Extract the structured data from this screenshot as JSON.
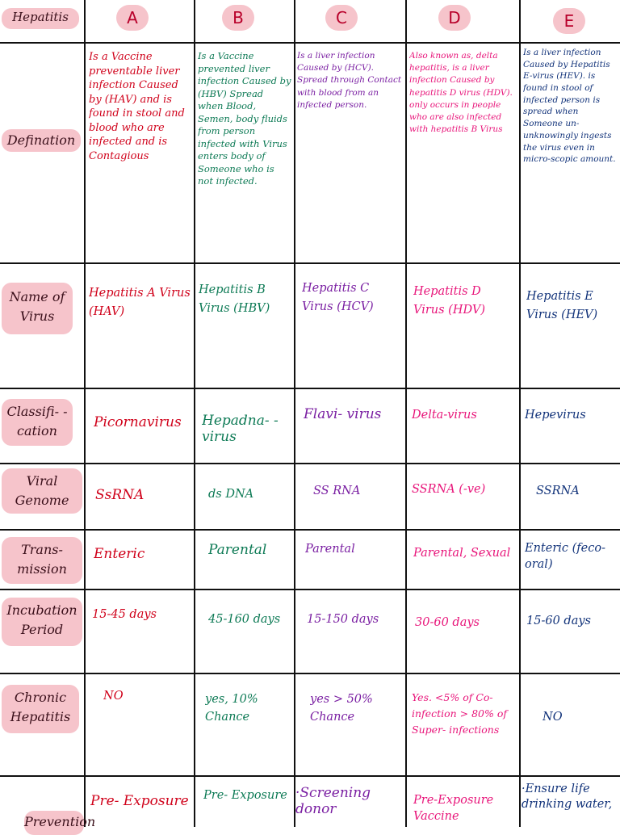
{
  "header": {
    "corner": "Hepatitis",
    "cols": [
      "A",
      "B",
      "C",
      "D",
      "E"
    ]
  },
  "rows": {
    "definition": {
      "label": "Defination",
      "cells": [
        "Is a Vaccine preventable liver infection Caused by (HAV) and is found in stool and blood who are infected and is Contagious",
        "Is a Vaccine prevented liver infection Caused by (HBV) Spread when Blood, Semen, body fluids from person infected with Virus enters body of Someone who is not infected.",
        "Is a liver infection Caused by (HCV). Spread through Contact with blood from an infected person.",
        "Also known as, delta hepatitis, is a liver infection Caused by hepatitis D virus (HDV). only occurs in people who are also infected with hepatitis B Virus",
        "Is a liver infection Caused by Hepatitis E-virus (HEV). is found in stool of infected person is spread when Someone un-unknowingly ingests the virus even in micro-scopic amount."
      ]
    },
    "virus_name": {
      "label": "Name of Virus",
      "cells": [
        "Hepatitis A Virus (HAV)",
        "Hepatitis B Virus (HBV)",
        "Hepatitis C Virus (HCV)",
        "Hepatitis D Virus (HDV)",
        "Hepatitis E Virus (HEV)"
      ]
    },
    "classification": {
      "label": "Classifi- -cation",
      "cells": [
        "Picornavirus",
        "Hepadna- -virus",
        "Flavi- virus",
        "Delta-virus",
        "Hepevirus"
      ]
    },
    "genome": {
      "label": "Viral Genome",
      "cells": [
        "SsRNA",
        "ds DNA",
        "SS RNA",
        "SSRNA (-ve)",
        "SSRNA"
      ]
    },
    "transmission": {
      "label": "Trans- mission",
      "cells": [
        "Enteric",
        "Parental",
        "Parental",
        "Parental, Sexual",
        "Enteric (feco-oral)"
      ]
    },
    "incubation": {
      "label": "Incubation Period",
      "cells": [
        "15-45 days",
        "45-160 days",
        "15-150 days",
        "30-60 days",
        "15-60 days"
      ]
    },
    "chronic": {
      "label": "Chronic Hepatitis",
      "cells": [
        "NO",
        "yes, 10% Chance",
        "yes > 50% Chance",
        "Yes. <5% of Co-infection > 80% of Super- infections",
        "NO"
      ]
    },
    "prevention": {
      "label": "Prevention",
      "cells": [
        "Pre- Exposure",
        "Pre- Exposure",
        "·Screening donor",
        "Pre-Exposure Vaccine",
        "·Ensure life drinking water,"
      ]
    }
  }
}
